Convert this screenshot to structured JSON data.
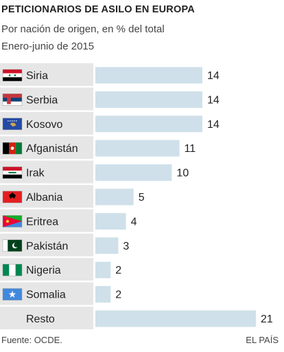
{
  "header": {
    "title": "PETICIONARIOS DE ASILO EN EUROPA",
    "subtitle": "Por nación de origen, en % del total",
    "period": "Enero-junio de 2015"
  },
  "footer": {
    "source": "Fuente: OCDE.",
    "brand": "EL PAÍS"
  },
  "colors": {
    "bar": "#cfe0ea",
    "label_band": "#e6e6e6",
    "text": "#222222"
  },
  "chart_data": {
    "type": "bar",
    "orientation": "horizontal",
    "categories": [
      "Siria",
      "Serbia",
      "Kosovo",
      "Afganistán",
      "Irak",
      "Albania",
      "Eritrea",
      "Pakistán",
      "Nigeria",
      "Somalia",
      "Resto"
    ],
    "flags": [
      "syria-flag-icon",
      "serbia-flag-icon",
      "kosovo-flag-icon",
      "afghanistan-flag-icon",
      "iraq-flag-icon",
      "albania-flag-icon",
      "eritrea-flag-icon",
      "pakistan-flag-icon",
      "nigeria-flag-icon",
      "somalia-flag-icon",
      ""
    ],
    "values": [
      14,
      14,
      14,
      11,
      10,
      5,
      4,
      3,
      2,
      2,
      21
    ],
    "unit": "%",
    "grid": false,
    "legend": "none"
  }
}
